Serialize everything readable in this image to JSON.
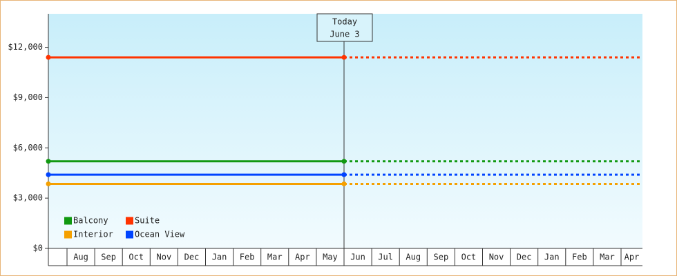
{
  "chart_data": {
    "type": "line",
    "categories": [
      null,
      "Aug",
      "Sep",
      "Oct",
      "Nov",
      "Dec",
      "Jan",
      "Feb",
      "Mar",
      "Apr",
      "May",
      "Jun",
      "Jul",
      "Aug",
      "Sep",
      "Oct",
      "Nov",
      "Dec",
      "Jan",
      "Feb",
      "Mar",
      "Apr"
    ],
    "annotation": {
      "title": "Today",
      "date": "June 3"
    },
    "series": [
      {
        "name": "Balcony",
        "color": "#119911",
        "value": 5200
      },
      {
        "name": "Suite",
        "color": "#ff3300",
        "value": 11400
      },
      {
        "name": "Interior",
        "color": "#f5a000",
        "value": 3850
      },
      {
        "name": "Ocean View",
        "color": "#0044ff",
        "value": 4400
      }
    ],
    "ylim": [
      0,
      14000
    ],
    "yticks": [
      {
        "value": 0,
        "label": "$0"
      },
      {
        "value": 3000,
        "label": "$3,000"
      },
      {
        "value": 6000,
        "label": "$6,000"
      },
      {
        "value": 9000,
        "label": "$9,000"
      },
      {
        "value": 12000,
        "label": "$12,000"
      }
    ]
  }
}
